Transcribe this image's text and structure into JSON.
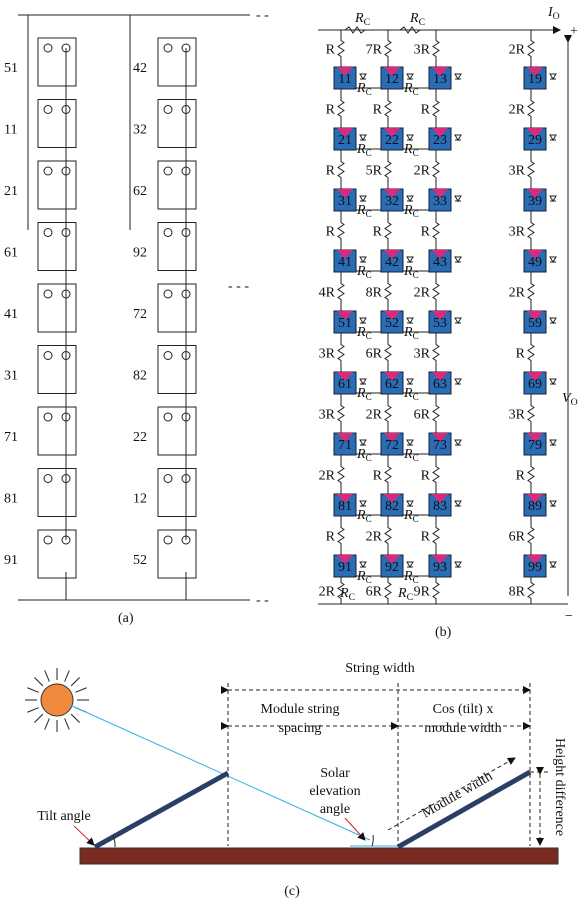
{
  "panel_a": {
    "column_1": [
      "51",
      "11",
      "21",
      "61",
      "41",
      "31",
      "71",
      "81",
      "91"
    ],
    "column_2": [
      "42",
      "32",
      "62",
      "92",
      "72",
      "82",
      "22",
      "12",
      "52"
    ],
    "caption": "(a)"
  },
  "panel_b": {
    "modules": [
      [
        "11",
        "12",
        "13",
        "19"
      ],
      [
        "21",
        "22",
        "23",
        "29"
      ],
      [
        "31",
        "32",
        "33",
        "39"
      ],
      [
        "41",
        "42",
        "43",
        "49"
      ],
      [
        "51",
        "52",
        "53",
        "59"
      ],
      [
        "61",
        "62",
        "63",
        "69"
      ],
      [
        "71",
        "72",
        "73",
        "79"
      ],
      [
        "81",
        "82",
        "83",
        "89"
      ],
      [
        "91",
        "92",
        "93",
        "99"
      ]
    ],
    "resistors": [
      [
        "R",
        "R",
        "R",
        "R",
        "4R",
        "3R",
        "3R",
        "2R",
        "R",
        "2R"
      ],
      [
        "7R",
        "R",
        "5R",
        "R",
        "8R",
        "6R",
        "2R",
        "R",
        "2R",
        "6R"
      ],
      [
        "3R",
        "R",
        "2R",
        "R",
        "2R",
        "3R",
        "6R",
        "R",
        "R",
        "9R"
      ],
      [
        "2R",
        "2R",
        "3R",
        "3R",
        "2R",
        "R",
        "3R",
        "R",
        "6R",
        "8R"
      ]
    ],
    "rc": {
      "symbol": "R",
      "sub": "C"
    },
    "io": {
      "symbol": "I",
      "sub": "O"
    },
    "plus": "+",
    "vo": {
      "symbol": "V",
      "sub": "O"
    },
    "minus": "−",
    "caption": "(b)"
  },
  "panel_c": {
    "string_width": "String width",
    "module_string_spacing": [
      "Module string",
      "spacing"
    ],
    "cos_tilt_width": [
      "Cos (tilt) x",
      "module width"
    ],
    "module_width": "Module width",
    "height_difference": "Height difference",
    "solar_elevation_angle": [
      "Solar",
      "elevation",
      "angle"
    ],
    "tilt_angle": "Tilt angle",
    "caption": "(c)"
  }
}
